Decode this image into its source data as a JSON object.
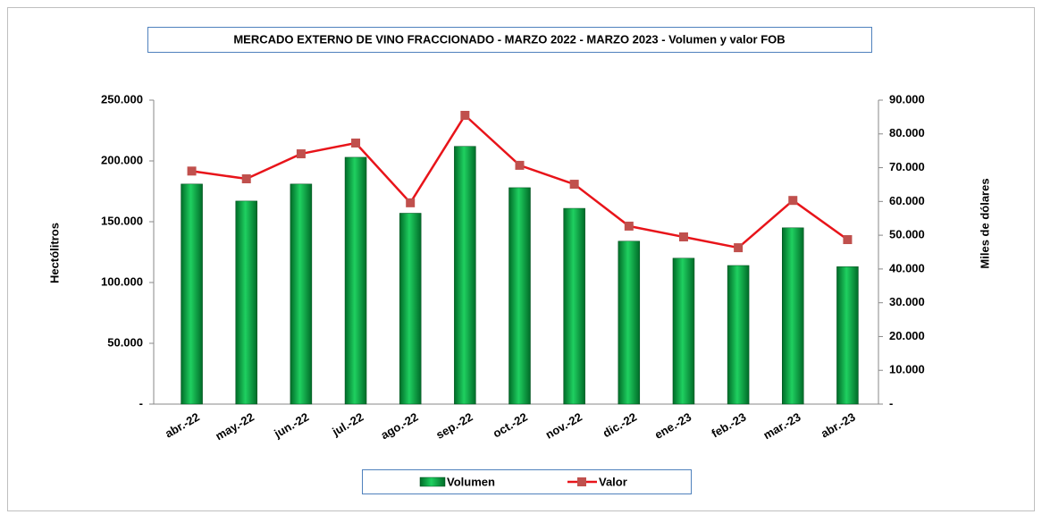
{
  "chart_data": {
    "type": "bar+line",
    "title": "MERCADO EXTERNO DE VINO FRACCIONADO - MARZO 2022 - MARZO 2023 - Volumen y valor FOB",
    "y_label": "Hectólitros",
    "y2_label": "Miles de dólares",
    "categories": [
      "abr.-22",
      "may.-22",
      "jun.-22",
      "jul.-22",
      "ago.-22",
      "sep.-22",
      "oct.-22",
      "nov.-22",
      "dic.-22",
      "ene.-23",
      "feb.-23",
      "mar.-23",
      "abr.-23"
    ],
    "series": [
      {
        "name": "Volumen",
        "type": "bar",
        "color": "#00a03c",
        "values": [
          181000,
          167000,
          181000,
          203000,
          157000,
          212000,
          178000,
          161000,
          134000,
          120000,
          114000,
          145000,
          113000
        ]
      },
      {
        "name": "Valor",
        "type": "line",
        "axis": "y2",
        "color": "#e8141a",
        "marker_color": "#c0504d",
        "values": [
          69000,
          66700,
          74100,
          77300,
          59600,
          85500,
          70700,
          65100,
          52700,
          49500,
          46300,
          60300,
          48700
        ]
      }
    ],
    "ylim": [
      0,
      250000
    ],
    "yticks": [
      {
        "value": 0,
        "label": "-"
      },
      {
        "value": 50000,
        "label": "50.000"
      },
      {
        "value": 100000,
        "label": "100.000"
      },
      {
        "value": 150000,
        "label": "150.000"
      },
      {
        "value": 200000,
        "label": "200.000"
      },
      {
        "value": 250000,
        "label": "250.000"
      }
    ],
    "y2lim": [
      0,
      90000
    ],
    "y2ticks": [
      {
        "value": 0,
        "label": "-"
      },
      {
        "value": 10000,
        "label": "10.000"
      },
      {
        "value": 20000,
        "label": "20.000"
      },
      {
        "value": 30000,
        "label": "30.000"
      },
      {
        "value": 40000,
        "label": "40.000"
      },
      {
        "value": 50000,
        "label": "50.000"
      },
      {
        "value": 60000,
        "label": "60.000"
      },
      {
        "value": 70000,
        "label": "70.000"
      },
      {
        "value": 80000,
        "label": "80.000"
      },
      {
        "value": 90000,
        "label": "90.000"
      }
    ],
    "legend": "bottom",
    "grid": false
  }
}
